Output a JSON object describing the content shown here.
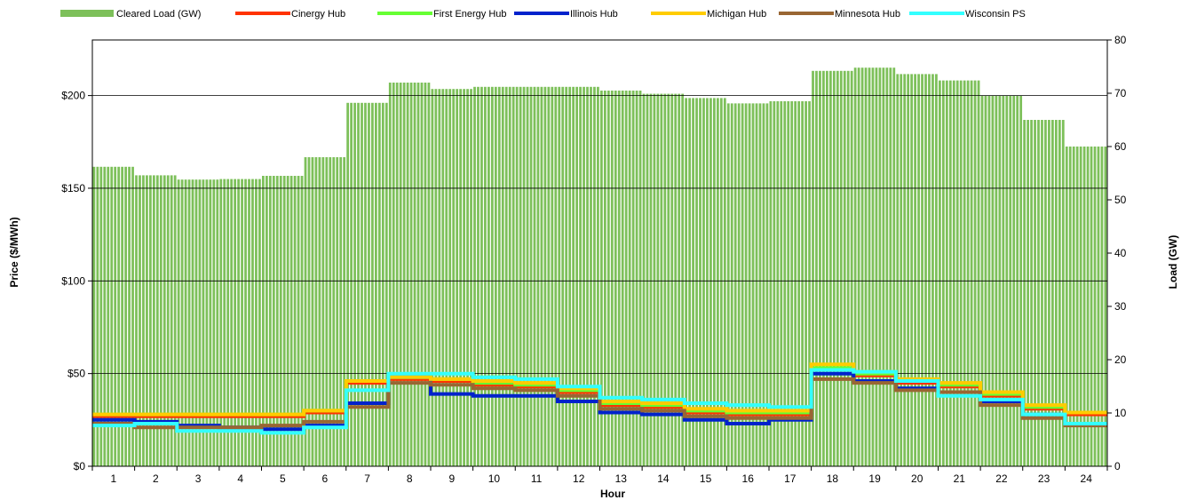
{
  "chart_data": {
    "type": "bar+step-line",
    "title": "",
    "xlabel": "Hour",
    "ylabel_left": "Price ($/MWh)",
    "ylabel_right": "Load (GW)",
    "x_categories": [
      "1",
      "2",
      "3",
      "4",
      "5",
      "6",
      "7",
      "8",
      "9",
      "10",
      "11",
      "12",
      "13",
      "14",
      "15",
      "16",
      "17",
      "18",
      "19",
      "20",
      "21",
      "22",
      "23",
      "24"
    ],
    "y_left_range": [
      0,
      230
    ],
    "y_left_ticks": [
      0,
      50,
      100,
      150,
      200
    ],
    "y_left_tick_labels": [
      "$0",
      "$50",
      "$100",
      "$150",
      "$200"
    ],
    "y_right_range": [
      0,
      80
    ],
    "y_right_ticks": [
      0,
      10,
      20,
      30,
      40,
      50,
      60,
      70,
      80
    ],
    "y_right_tick_labels": [
      "0",
      "10",
      "20",
      "30",
      "40",
      "50",
      "60",
      "70",
      "80"
    ],
    "grid": "horizontal at $50 intervals",
    "legend_position": "top",
    "bars": {
      "name": "Cleared Load (GW)",
      "color": "#7dc05a",
      "axis": "right",
      "values": [
        56.2,
        54.6,
        53.8,
        53.9,
        54.5,
        58.0,
        68.2,
        72.0,
        70.8,
        71.2,
        71.2,
        71.2,
        70.5,
        69.9,
        69.1,
        68.1,
        68.5,
        74.2,
        74.8,
        73.6,
        72.4,
        69.5,
        65.0,
        60.0
      ]
    },
    "series": [
      {
        "name": "Cinergy Hub",
        "color": "#ff3300",
        "axis": "left",
        "values": [
          27,
          27,
          27,
          27,
          27,
          29,
          45,
          47,
          46,
          44,
          43,
          40,
          33,
          32,
          29,
          28,
          28,
          52,
          49,
          45,
          43,
          38,
          31,
          28
        ]
      },
      {
        "name": "First Energy Hub",
        "color": "#66ff33",
        "axis": "left",
        "values": [
          28,
          28,
          28,
          28,
          28,
          30,
          46,
          48,
          47,
          45,
          44,
          41,
          34,
          33,
          30,
          29,
          29,
          53,
          50,
          46,
          44,
          39,
          32,
          29
        ]
      },
      {
        "name": "Illinois Hub",
        "color": "#0022cc",
        "axis": "left",
        "values": [
          25,
          24,
          22,
          21,
          20,
          22,
          34,
          48,
          39,
          38,
          38,
          35,
          29,
          28,
          25,
          23,
          25,
          50,
          46,
          42,
          40,
          35,
          28,
          23
        ]
      },
      {
        "name": "Michigan Hub",
        "color": "#ffcc00",
        "axis": "left",
        "values": [
          28,
          28,
          28,
          28,
          28,
          30,
          46,
          48,
          47,
          46,
          45,
          42,
          35,
          34,
          31,
          30,
          30,
          55,
          51,
          47,
          45,
          40,
          33,
          29
        ]
      },
      {
        "name": "Minnesota Hub",
        "color": "#996633",
        "axis": "left",
        "values": [
          23,
          21,
          21,
          21,
          22,
          24,
          32,
          45,
          44,
          42,
          41,
          38,
          31,
          30,
          27,
          26,
          26,
          47,
          45,
          41,
          40,
          33,
          26,
          22
        ]
      },
      {
        "name": "Wisconsin PS",
        "color": "#33ffff",
        "axis": "left",
        "values": [
          22,
          23,
          19,
          19,
          18,
          21,
          41,
          50,
          50,
          48,
          47,
          43,
          37,
          36,
          34,
          33,
          32,
          52,
          51,
          46,
          38,
          36,
          28,
          23
        ]
      }
    ]
  }
}
